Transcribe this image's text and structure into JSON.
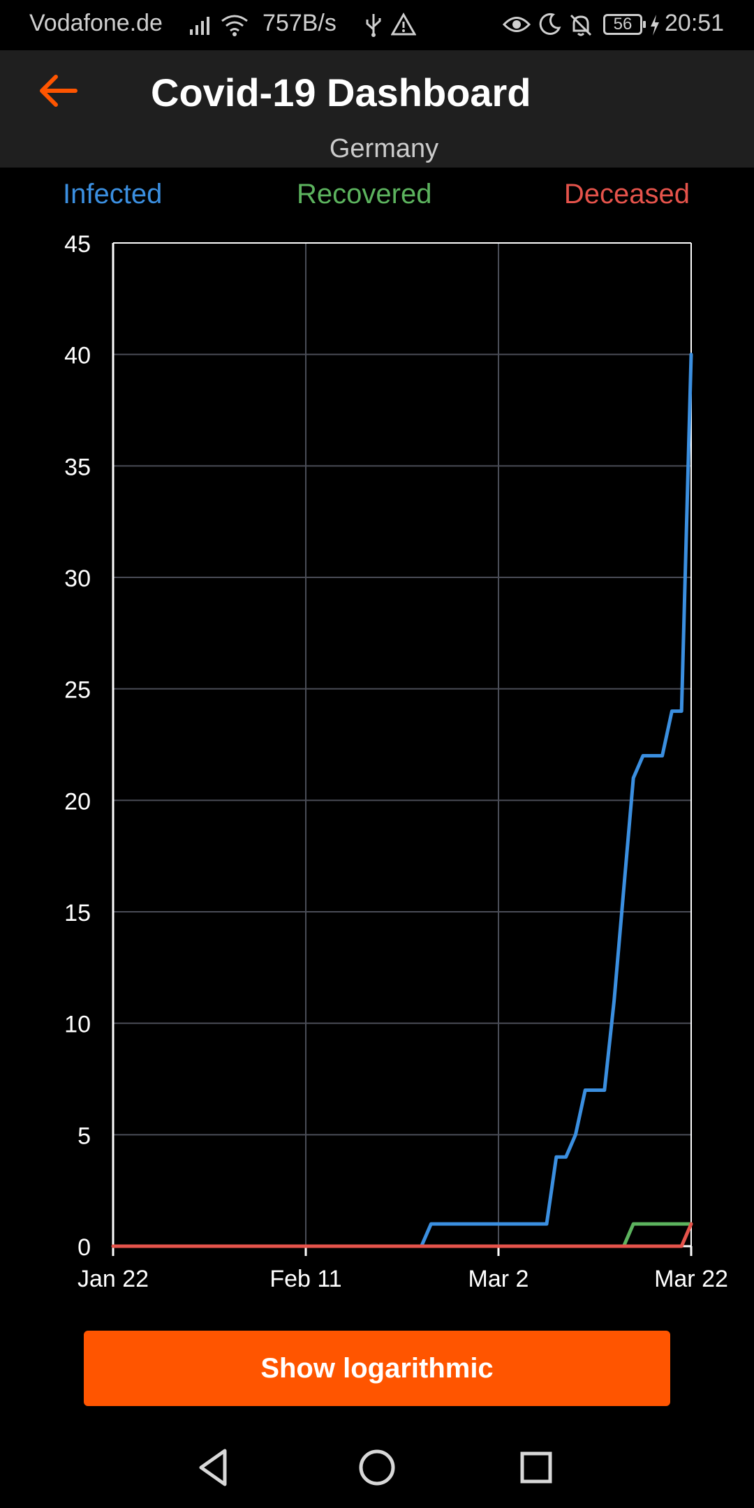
{
  "status_bar": {
    "carrier": "Vodafone.de",
    "net_speed": "757B/s",
    "battery": "56",
    "time": "20:51"
  },
  "header": {
    "title": "Covid-19 Dashboard",
    "subtitle": "Germany"
  },
  "legend": {
    "infected": "Infected",
    "recovered": "Recovered",
    "deceased": "Deceased"
  },
  "colors": {
    "accent": "#ff5500",
    "infected": "#3b8fe0",
    "recovered": "#5cb35e",
    "deceased": "#e5534b"
  },
  "chart_data": {
    "type": "line",
    "x_tick_labels": [
      "Jan 22",
      "Feb 11",
      "Mar 2",
      "Mar 22"
    ],
    "x_range_days": [
      0,
      60
    ],
    "ylim": [
      0,
      45
    ],
    "y_ticks": [
      0,
      5,
      10,
      15,
      20,
      25,
      30,
      35,
      40,
      45
    ],
    "grid": true,
    "legend_position": "top",
    "series": [
      {
        "name": "Infected",
        "color": "#3b8fe0",
        "points": [
          [
            0,
            0
          ],
          [
            32,
            0
          ],
          [
            33,
            1
          ],
          [
            45,
            1
          ],
          [
            46,
            4
          ],
          [
            47,
            4
          ],
          [
            48,
            5
          ],
          [
            49,
            7
          ],
          [
            51,
            7
          ],
          [
            52,
            11
          ],
          [
            54,
            21
          ],
          [
            55,
            22
          ],
          [
            57,
            22
          ],
          [
            58,
            24
          ],
          [
            59,
            24
          ],
          [
            60,
            40
          ]
        ]
      },
      {
        "name": "Recovered",
        "color": "#5cb35e",
        "points": [
          [
            0,
            0
          ],
          [
            53,
            0
          ],
          [
            54,
            1
          ],
          [
            60,
            1
          ]
        ]
      },
      {
        "name": "Deceased",
        "color": "#e5534b",
        "points": [
          [
            0,
            0
          ],
          [
            59,
            0
          ],
          [
            60,
            1
          ]
        ]
      }
    ]
  },
  "actions": {
    "log_button": "Show logarithmic"
  }
}
